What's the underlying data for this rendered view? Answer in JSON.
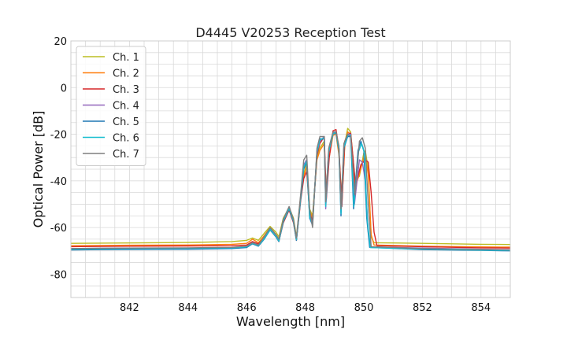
{
  "chart_data": {
    "type": "line",
    "title": "D4445 V20253 Reception Test",
    "xlabel": "Wavelength [nm]",
    "ylabel": "Optical Power [dB]",
    "xlim": [
      840.0,
      855.0
    ],
    "ylim": [
      -90,
      20
    ],
    "xticks": [
      842,
      844,
      846,
      848,
      850,
      852,
      854
    ],
    "yticks": [
      20,
      0,
      -20,
      -40,
      -60,
      -80
    ],
    "x_minor_step": 0.5,
    "y_minor_step": 5,
    "grid": true,
    "legend_position": "top-left",
    "series": [
      {
        "name": "Ch. 1",
        "color": "#bcbd22",
        "points": [
          [
            840.0,
            -66.8
          ],
          [
            842.0,
            -66.6
          ],
          [
            844.0,
            -66.4
          ],
          [
            845.5,
            -66.0
          ],
          [
            846.0,
            -65.5
          ],
          [
            846.2,
            -64.5
          ],
          [
            846.4,
            -65.5
          ],
          [
            846.6,
            -62.5
          ],
          [
            846.8,
            -59.5
          ],
          [
            847.0,
            -62
          ],
          [
            847.1,
            -64
          ],
          [
            847.25,
            -56
          ],
          [
            847.45,
            -51.5
          ],
          [
            847.6,
            -56
          ],
          [
            847.7,
            -64
          ],
          [
            847.85,
            -46
          ],
          [
            847.95,
            -37
          ],
          [
            848.05,
            -33
          ],
          [
            848.15,
            -52
          ],
          [
            848.25,
            -55
          ],
          [
            848.4,
            -30
          ],
          [
            848.5,
            -26
          ],
          [
            848.65,
            -23
          ],
          [
            848.7,
            -45
          ],
          [
            848.8,
            -30
          ],
          [
            848.95,
            -19.5
          ],
          [
            849.05,
            -19
          ],
          [
            849.15,
            -28
          ],
          [
            849.25,
            -48
          ],
          [
            849.35,
            -24
          ],
          [
            849.45,
            -17.5
          ],
          [
            849.55,
            -19
          ],
          [
            849.7,
            -40
          ],
          [
            849.85,
            -38
          ],
          [
            850.0,
            -28
          ],
          [
            850.05,
            -27
          ],
          [
            850.15,
            -35
          ],
          [
            850.25,
            -64
          ],
          [
            850.35,
            -66.5
          ],
          [
            852.0,
            -66.8
          ],
          [
            854.0,
            -67.2
          ],
          [
            855.0,
            -67.3
          ]
        ]
      },
      {
        "name": "Ch. 2",
        "color": "#ff7f0e",
        "points": [
          [
            840.0,
            -67.8
          ],
          [
            842.0,
            -67.6
          ],
          [
            844.0,
            -67.5
          ],
          [
            845.5,
            -67.2
          ],
          [
            846.0,
            -66.8
          ],
          [
            846.2,
            -65.0
          ],
          [
            846.4,
            -66.5
          ],
          [
            846.6,
            -63.5
          ],
          [
            846.8,
            -60.0
          ],
          [
            847.0,
            -63
          ],
          [
            847.1,
            -65
          ],
          [
            847.25,
            -57
          ],
          [
            847.45,
            -52
          ],
          [
            847.6,
            -57
          ],
          [
            847.7,
            -65
          ],
          [
            847.85,
            -47
          ],
          [
            847.95,
            -38
          ],
          [
            848.05,
            -34
          ],
          [
            848.15,
            -53
          ],
          [
            848.25,
            -56
          ],
          [
            848.4,
            -31
          ],
          [
            848.5,
            -27
          ],
          [
            848.65,
            -24
          ],
          [
            848.7,
            -47
          ],
          [
            848.8,
            -31
          ],
          [
            848.95,
            -20.5
          ],
          [
            849.05,
            -20
          ],
          [
            849.15,
            -29
          ],
          [
            849.25,
            -50
          ],
          [
            849.35,
            -25
          ],
          [
            849.45,
            -19
          ],
          [
            849.55,
            -20
          ],
          [
            849.7,
            -43
          ],
          [
            849.85,
            -37
          ],
          [
            850.0,
            -30
          ],
          [
            850.05,
            -30
          ],
          [
            850.15,
            -37
          ],
          [
            850.25,
            -63
          ],
          [
            850.35,
            -67.5
          ],
          [
            852.0,
            -68.0
          ],
          [
            854.0,
            -68.3
          ],
          [
            855.0,
            -68.4
          ]
        ]
      },
      {
        "name": "Ch. 3",
        "color": "#d62728",
        "points": [
          [
            840.0,
            -68.2
          ],
          [
            842.0,
            -68.0
          ],
          [
            844.0,
            -67.9
          ],
          [
            845.5,
            -67.8
          ],
          [
            846.0,
            -67.5
          ],
          [
            846.2,
            -66.0
          ],
          [
            846.4,
            -67.0
          ],
          [
            846.6,
            -64.5
          ],
          [
            846.8,
            -61.0
          ],
          [
            847.0,
            -64
          ],
          [
            847.1,
            -66
          ],
          [
            847.25,
            -58
          ],
          [
            847.45,
            -52.5
          ],
          [
            847.6,
            -58
          ],
          [
            847.7,
            -65.5
          ],
          [
            847.85,
            -48
          ],
          [
            847.95,
            -39
          ],
          [
            848.05,
            -36
          ],
          [
            848.15,
            -54
          ],
          [
            848.25,
            -57
          ],
          [
            848.4,
            -29
          ],
          [
            848.5,
            -24
          ],
          [
            848.65,
            -21
          ],
          [
            848.72,
            -48
          ],
          [
            848.82,
            -30
          ],
          [
            848.95,
            -18.5
          ],
          [
            849.05,
            -18
          ],
          [
            849.15,
            -26
          ],
          [
            849.25,
            -51
          ],
          [
            849.35,
            -23
          ],
          [
            849.45,
            -20
          ],
          [
            849.55,
            -19.5
          ],
          [
            849.72,
            -42
          ],
          [
            849.9,
            -33
          ],
          [
            850.05,
            -31
          ],
          [
            850.15,
            -32
          ],
          [
            850.25,
            -45
          ],
          [
            850.35,
            -62
          ],
          [
            850.45,
            -67.8
          ],
          [
            852.0,
            -68.2
          ],
          [
            854.0,
            -68.7
          ],
          [
            855.0,
            -68.8
          ]
        ]
      },
      {
        "name": "Ch. 4",
        "color": "#9467bd",
        "points": [
          [
            840.0,
            -69.0
          ],
          [
            842.0,
            -68.8
          ],
          [
            844.0,
            -68.8
          ],
          [
            845.5,
            -68.6
          ],
          [
            846.0,
            -68.0
          ],
          [
            846.2,
            -66.5
          ],
          [
            846.4,
            -67.5
          ],
          [
            846.6,
            -64.5
          ],
          [
            846.8,
            -60.5
          ],
          [
            847.0,
            -63.5
          ],
          [
            847.1,
            -65.5
          ],
          [
            847.25,
            -57
          ],
          [
            847.45,
            -51.5
          ],
          [
            847.6,
            -57
          ],
          [
            847.7,
            -65
          ],
          [
            847.85,
            -46
          ],
          [
            847.95,
            -33
          ],
          [
            848.05,
            -31
          ],
          [
            848.15,
            -55
          ],
          [
            848.25,
            -58
          ],
          [
            848.4,
            -28
          ],
          [
            848.5,
            -23
          ],
          [
            848.65,
            -21
          ],
          [
            848.7,
            -52
          ],
          [
            848.8,
            -28
          ],
          [
            848.95,
            -19.5
          ],
          [
            849.05,
            -19
          ],
          [
            849.15,
            -26
          ],
          [
            849.22,
            -53
          ],
          [
            849.32,
            -25
          ],
          [
            849.45,
            -20
          ],
          [
            849.55,
            -20
          ],
          [
            849.68,
            -50
          ],
          [
            849.85,
            -31
          ],
          [
            849.95,
            -32
          ],
          [
            850.05,
            -40
          ],
          [
            850.15,
            -62
          ],
          [
            850.25,
            -68.3
          ],
          [
            852.0,
            -68.8
          ],
          [
            854.0,
            -69.3
          ],
          [
            855.0,
            -69.5
          ]
        ]
      },
      {
        "name": "Ch. 5",
        "color": "#1f77b4",
        "points": [
          [
            840.0,
            -69.6
          ],
          [
            842.0,
            -69.4
          ],
          [
            844.0,
            -69.3
          ],
          [
            845.5,
            -69.0
          ],
          [
            846.0,
            -68.6
          ],
          [
            846.2,
            -67.0
          ],
          [
            846.4,
            -68.0
          ],
          [
            846.6,
            -65.0
          ],
          [
            846.8,
            -61.0
          ],
          [
            847.0,
            -64
          ],
          [
            847.1,
            -66
          ],
          [
            847.25,
            -57.5
          ],
          [
            847.45,
            -52
          ],
          [
            847.6,
            -57.5
          ],
          [
            847.7,
            -65.5
          ],
          [
            847.85,
            -47
          ],
          [
            847.95,
            -35
          ],
          [
            848.05,
            -32
          ],
          [
            848.15,
            -56
          ],
          [
            848.25,
            -59
          ],
          [
            848.4,
            -27
          ],
          [
            848.5,
            -22
          ],
          [
            848.65,
            -22
          ],
          [
            848.7,
            -50
          ],
          [
            848.8,
            -27
          ],
          [
            848.95,
            -20
          ],
          [
            849.05,
            -19.5
          ],
          [
            849.15,
            -27
          ],
          [
            849.22,
            -55
          ],
          [
            849.32,
            -26
          ],
          [
            849.45,
            -21
          ],
          [
            849.55,
            -21
          ],
          [
            849.65,
            -52
          ],
          [
            849.8,
            -27
          ],
          [
            849.9,
            -23
          ],
          [
            850.0,
            -27
          ],
          [
            850.1,
            -56
          ],
          [
            850.2,
            -68.5
          ],
          [
            852.0,
            -69.5
          ],
          [
            854.0,
            -69.8
          ],
          [
            855.0,
            -70.0
          ]
        ]
      },
      {
        "name": "Ch. 6",
        "color": "#17becf",
        "points": [
          [
            840.0,
            -69.3
          ],
          [
            842.0,
            -69.0
          ],
          [
            844.0,
            -68.9
          ],
          [
            845.5,
            -68.7
          ],
          [
            846.0,
            -68.3
          ],
          [
            846.2,
            -66.8
          ],
          [
            846.4,
            -67.8
          ],
          [
            846.6,
            -64.8
          ],
          [
            846.8,
            -60.8
          ],
          [
            847.0,
            -63.8
          ],
          [
            847.1,
            -65.8
          ],
          [
            847.25,
            -57.2
          ],
          [
            847.45,
            -51.8
          ],
          [
            847.6,
            -57.2
          ],
          [
            847.7,
            -65.2
          ],
          [
            847.85,
            -46.5
          ],
          [
            847.95,
            -34
          ],
          [
            848.05,
            -31.5
          ],
          [
            848.15,
            -55.5
          ],
          [
            848.25,
            -58.5
          ],
          [
            848.4,
            -27.5
          ],
          [
            848.5,
            -22.5
          ],
          [
            848.65,
            -21.5
          ],
          [
            848.7,
            -51
          ],
          [
            848.8,
            -27.5
          ],
          [
            848.95,
            -19.8
          ],
          [
            849.05,
            -19.2
          ],
          [
            849.15,
            -26.5
          ],
          [
            849.22,
            -54
          ],
          [
            849.32,
            -25.5
          ],
          [
            849.45,
            -20.5
          ],
          [
            849.55,
            -20.5
          ],
          [
            849.66,
            -51
          ],
          [
            849.82,
            -27.5
          ],
          [
            849.92,
            -24
          ],
          [
            850.02,
            -28
          ],
          [
            850.12,
            -57
          ],
          [
            850.22,
            -68.6
          ],
          [
            852.0,
            -69.2
          ],
          [
            854.0,
            -69.7
          ],
          [
            855.0,
            -69.8
          ]
        ]
      },
      {
        "name": "Ch. 7",
        "color": "#7f7f7f",
        "points": [
          [
            840.0,
            -69.0
          ],
          [
            842.0,
            -68.8
          ],
          [
            844.0,
            -68.7
          ],
          [
            845.5,
            -68.5
          ],
          [
            846.0,
            -68.0
          ],
          [
            846.2,
            -66.5
          ],
          [
            846.4,
            -67.5
          ],
          [
            846.6,
            -64.0
          ],
          [
            846.8,
            -60.0
          ],
          [
            847.0,
            -63.0
          ],
          [
            847.1,
            -65.0
          ],
          [
            847.25,
            -56.5
          ],
          [
            847.45,
            -51.0
          ],
          [
            847.6,
            -56.5
          ],
          [
            847.7,
            -64.5
          ],
          [
            847.85,
            -45
          ],
          [
            847.95,
            -31
          ],
          [
            848.05,
            -29
          ],
          [
            848.15,
            -52
          ],
          [
            848.25,
            -60
          ],
          [
            848.4,
            -26
          ],
          [
            848.5,
            -21
          ],
          [
            848.65,
            -21
          ],
          [
            848.7,
            -49
          ],
          [
            848.8,
            -26
          ],
          [
            848.95,
            -19
          ],
          [
            849.05,
            -19
          ],
          [
            849.15,
            -25
          ],
          [
            849.22,
            -52
          ],
          [
            849.32,
            -24
          ],
          [
            849.45,
            -20
          ],
          [
            849.55,
            -21
          ],
          [
            849.7,
            -46
          ],
          [
            849.85,
            -23
          ],
          [
            849.95,
            -21.5
          ],
          [
            850.05,
            -26
          ],
          [
            850.15,
            -50
          ],
          [
            850.25,
            -68.2
          ],
          [
            852.0,
            -69.0
          ],
          [
            854.0,
            -69.4
          ],
          [
            855.0,
            -69.6
          ]
        ]
      }
    ]
  }
}
